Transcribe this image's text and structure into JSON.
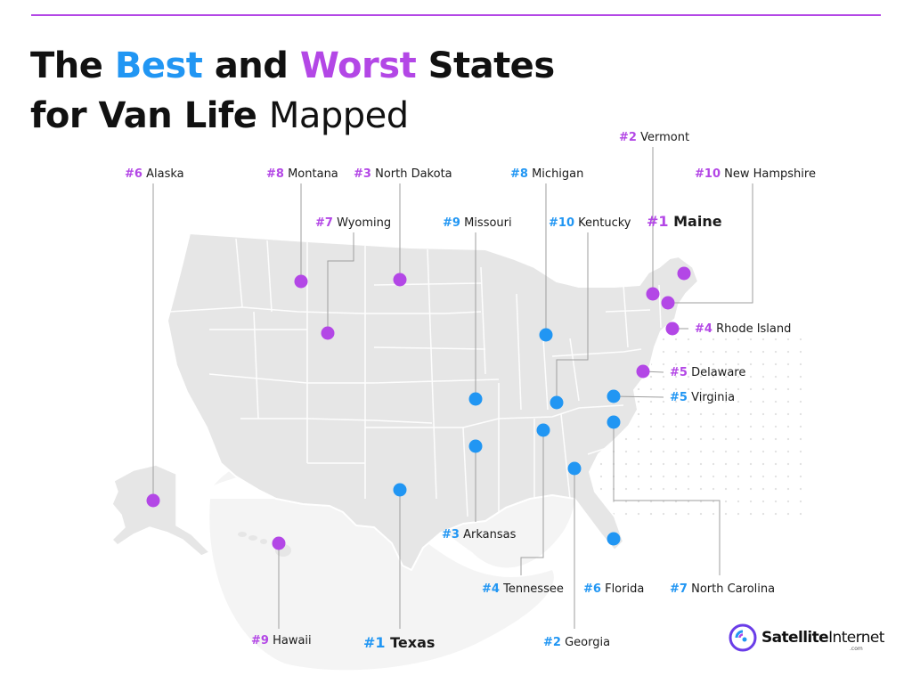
{
  "title": {
    "word_the": "The",
    "word_best": "Best",
    "word_and": "and",
    "word_worst": "Worst",
    "word_states": "States",
    "line2_bold": "for Van Life",
    "line2_thin": "Mapped"
  },
  "colors": {
    "best": "#2196f3",
    "worst": "#b347e6",
    "map_fill": "#e6e6e6",
    "leader": "#9e9e9e",
    "text": "#1a1a1a"
  },
  "best_states": [
    {
      "rank": "#1",
      "name": "Texas"
    },
    {
      "rank": "#2",
      "name": "Georgia"
    },
    {
      "rank": "#3",
      "name": "Arkansas"
    },
    {
      "rank": "#4",
      "name": "Tennessee"
    },
    {
      "rank": "#5",
      "name": "Virginia"
    },
    {
      "rank": "#6",
      "name": "Florida"
    },
    {
      "rank": "#7",
      "name": "North Carolina"
    },
    {
      "rank": "#8",
      "name": "Michigan"
    },
    {
      "rank": "#9",
      "name": "Missouri"
    },
    {
      "rank": "#10",
      "name": "Kentucky"
    }
  ],
  "worst_states": [
    {
      "rank": "#1",
      "name": "Maine"
    },
    {
      "rank": "#2",
      "name": "Vermont"
    },
    {
      "rank": "#3",
      "name": "North Dakota"
    },
    {
      "rank": "#4",
      "name": "Rhode Island"
    },
    {
      "rank": "#5",
      "name": "Delaware"
    },
    {
      "rank": "#6",
      "name": "Alaska"
    },
    {
      "rank": "#7",
      "name": "Wyoming"
    },
    {
      "rank": "#8",
      "name": "Montana"
    },
    {
      "rank": "#9",
      "name": "Hawaii"
    },
    {
      "rank": "#10",
      "name": "New Hampshire"
    }
  ],
  "logo": {
    "brand_bold": "Satellite",
    "brand_thin": "Internet",
    "suffix": ".com"
  }
}
